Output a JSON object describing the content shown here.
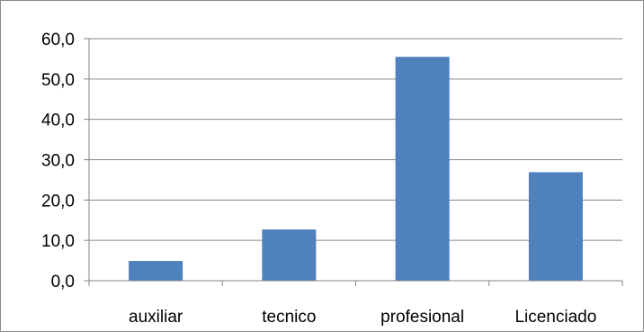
{
  "chart_data": {
    "type": "bar",
    "title": "",
    "xlabel": "",
    "ylabel": "",
    "categories": [
      "auxiliar",
      "tecnico",
      "profesional",
      "Licenciado"
    ],
    "values": [
      4.9,
      12.7,
      55.5,
      26.9
    ],
    "ylim": [
      0,
      60
    ],
    "y_ticks": [
      "0,0",
      "10,0",
      "20,0",
      "30,0",
      "40,0",
      "50,0",
      "60,0"
    ],
    "grid": true,
    "legend": "none",
    "colors": {
      "bar": "#4f81bd",
      "grid": "#868686",
      "axis": "#868686",
      "border": "#8c8c8c"
    }
  }
}
